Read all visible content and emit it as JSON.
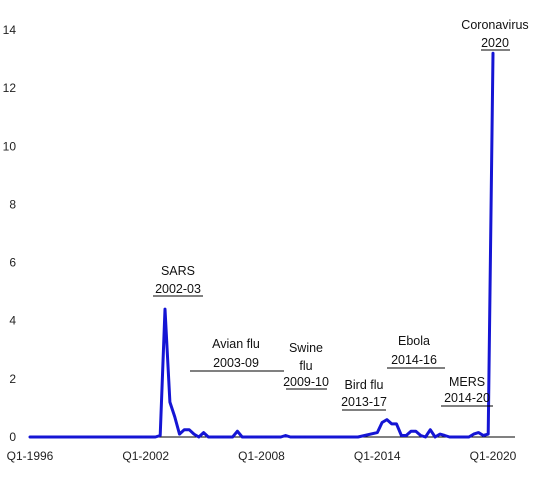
{
  "chart_data": {
    "type": "line",
    "title": "",
    "xlabel": "",
    "ylabel": "",
    "ylim": [
      0,
      14
    ],
    "y_ticks": [
      0,
      2,
      4,
      6,
      8,
      10,
      12,
      14
    ],
    "x_tick_labels": [
      "Q1-1996",
      "Q1-2002",
      "Q1-2008",
      "Q1-2014",
      "Q1-2020"
    ],
    "grid": false,
    "legend": "none",
    "series": [
      {
        "color": "#1515D4",
        "x": [
          "Q1-1996",
          "Q1-1997",
          "Q1-1998",
          "Q1-1999",
          "Q1-2000",
          "Q1-2001",
          "Q4-2001",
          "Q1-2002",
          "Q2-2002",
          "Q3-2002",
          "Q4-2002",
          "Q1-2003",
          "Q2-2003",
          "Q3-2003",
          "Q4-2003",
          "Q1-2004",
          "Q2-2004",
          "Q3-2004",
          "Q4-2004",
          "Q1-2005",
          "Q2-2005",
          "Q3-2005",
          "Q4-2005",
          "Q1-2006",
          "Q2-2006",
          "Q3-2006",
          "Q4-2006",
          "Q1-2007",
          "Q2-2007",
          "Q3-2007",
          "Q4-2007",
          "Q1-2008",
          "Q2-2008",
          "Q3-2008",
          "Q4-2008",
          "Q1-2009",
          "Q2-2009",
          "Q3-2009",
          "Q4-2009",
          "Q1-2010",
          "Q2-2010",
          "Q1-2011",
          "Q1-2012",
          "Q1-2013",
          "Q1-2014",
          "Q2-2014",
          "Q3-2014",
          "Q4-2014",
          "Q1-2015",
          "Q2-2015",
          "Q3-2015",
          "Q4-2015",
          "Q1-2016",
          "Q2-2016",
          "Q3-2016",
          "Q4-2016",
          "Q1-2017",
          "Q2-2017",
          "Q3-2017",
          "Q4-2017",
          "Q1-2018",
          "Q2-2018",
          "Q3-2018",
          "Q4-2018",
          "Q1-2019",
          "Q2-2019",
          "Q3-2019",
          "Q4-2019",
          "Q1-2020"
        ],
        "values": [
          0,
          0,
          0,
          0,
          0,
          0,
          0,
          0,
          0,
          0,
          0.05,
          4.4,
          1.2,
          0.7,
          0.1,
          0.25,
          0.25,
          0.1,
          0,
          0.15,
          0,
          0,
          0,
          0,
          0,
          0,
          0.2,
          0,
          0,
          0,
          0,
          0,
          0,
          0,
          0,
          0,
          0.05,
          0,
          0,
          0,
          0,
          0,
          0,
          0,
          0.15,
          0.5,
          0.6,
          0.45,
          0.45,
          0.05,
          0.05,
          0.2,
          0.2,
          0.05,
          0,
          0.25,
          0,
          0.1,
          0.05,
          0,
          0,
          0,
          0,
          0,
          0.1,
          0.15,
          0.05,
          0.1,
          13.2
        ]
      }
    ],
    "annotations": [
      {
        "name": "sars",
        "line1": "SARS",
        "line2": "2002-03"
      },
      {
        "name": "avian-flu",
        "line1": "Avian flu",
        "line2": "2003-09"
      },
      {
        "name": "swine-flu",
        "line1": "Swine",
        "line1b": "flu",
        "line2": "2009-10"
      },
      {
        "name": "bird-flu",
        "line1": "Bird flu",
        "line2": "2013-17"
      },
      {
        "name": "ebola",
        "line1": "Ebola",
        "line2": "2014-16"
      },
      {
        "name": "mers",
        "line1": "MERS",
        "line2": "2014-20"
      },
      {
        "name": "coronavirus",
        "line1": "Coronavirus",
        "line2": "2020"
      }
    ]
  }
}
